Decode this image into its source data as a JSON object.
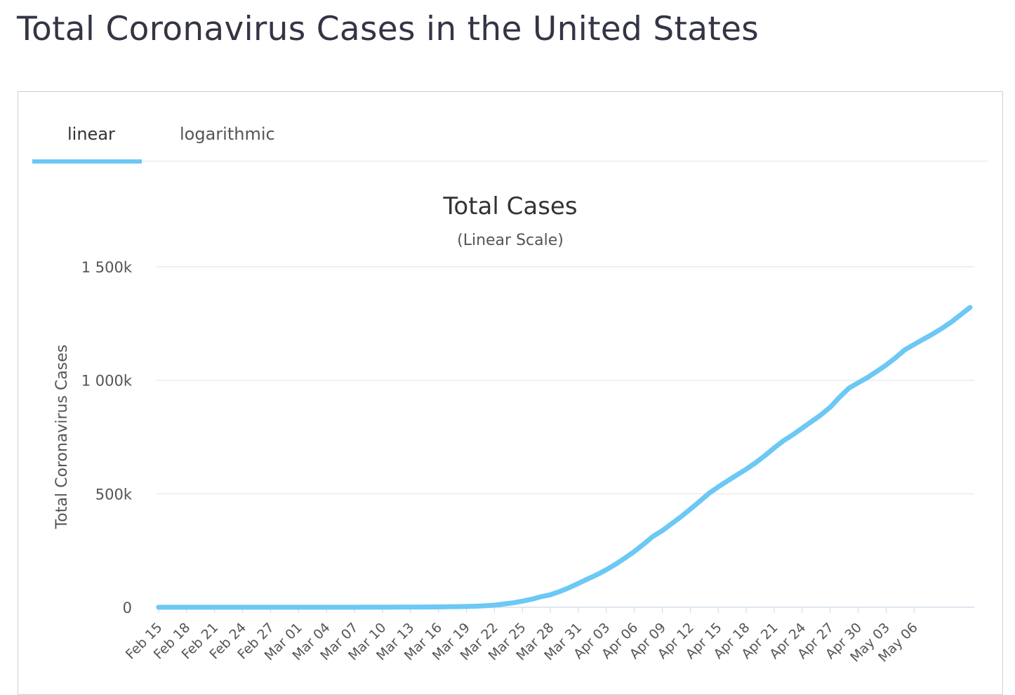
{
  "page": {
    "title": "Total Coronavirus Cases in the United States"
  },
  "tabs": [
    {
      "label": "linear",
      "active": true
    },
    {
      "label": "logarithmic",
      "active": false
    }
  ],
  "colors": {
    "accent": "#6cc8f5",
    "line": "#6cc8f5",
    "grid": "#e6e6e6",
    "text": "#333545"
  },
  "chart_data": {
    "type": "line",
    "title": "Total Cases",
    "subtitle": "(Linear Scale)",
    "ylabel": "Total Coronavirus Cases",
    "xlabel": "",
    "ylim": [
      0,
      1500000
    ],
    "yticks": [
      0,
      500000,
      1000000,
      1500000
    ],
    "ytick_labels": [
      "0",
      "500k",
      "1 000k",
      "1 500k"
    ],
    "grid": true,
    "legend": "none",
    "x_start": "Feb 15",
    "x_end": "May 09",
    "xtick_labels": [
      "Feb 15",
      "Feb 18",
      "Feb 21",
      "Feb 24",
      "Feb 27",
      "Mar 01",
      "Mar 04",
      "Mar 07",
      "Mar 10",
      "Mar 13",
      "Mar 16",
      "Mar 19",
      "Mar 22",
      "Mar 25",
      "Mar 28",
      "Mar 31",
      "Apr 03",
      "Apr 06",
      "Apr 09",
      "Apr 12",
      "Apr 15",
      "Apr 18",
      "Apr 21",
      "Apr 24",
      "Apr 27",
      "Apr 30",
      "May 03",
      "May 06"
    ],
    "series": [
      {
        "values": [
          15,
          15,
          15,
          15,
          15,
          15,
          15,
          15,
          15,
          15,
          15,
          15,
          15,
          15,
          24,
          24,
          60,
          60,
          70,
          88,
          104,
          126,
          161,
          233,
          338,
          445,
          572,
          717,
          1010,
          1300,
          1700,
          2200,
          2900,
          3500,
          4600,
          6400,
          9400,
          14200,
          19600,
          26900,
          35200,
          46400,
          55200,
          69200,
          86000,
          104800,
          124700,
          143500,
          165400,
          189600,
          216700,
          245600,
          277900,
          312200,
          337300,
          368100,
          398800,
          432100,
          466300,
          501700,
          530000,
          556900,
          582600,
          608400,
          636400,
          668000,
          702000,
          734000,
          760000,
          789000,
          818000,
          847000,
          881000,
          925000,
          965000,
          989000,
          1012000,
          1039000,
          1067000,
          1099000,
          1134000,
          1158000,
          1181000,
          1204000,
          1229000,
          1257000,
          1289000,
          1321000
        ]
      }
    ]
  }
}
